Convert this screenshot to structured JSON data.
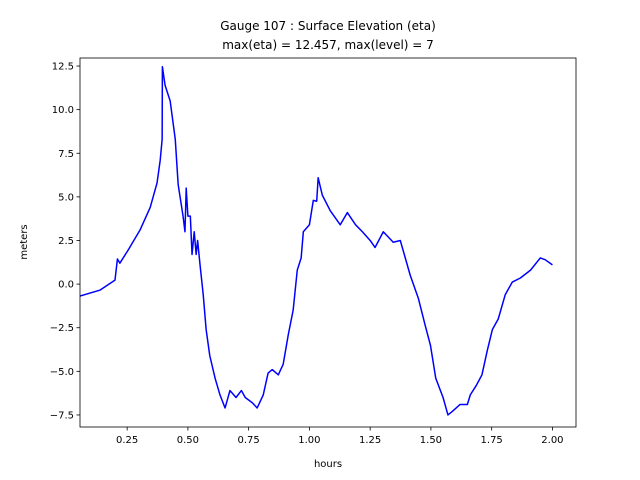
{
  "chart_data": {
    "type": "line",
    "title": "Gauge 107 : Surface Elevation (eta)",
    "subtitle": "max(eta) =  12.457,    max(level) = 7",
    "x_label": "hours",
    "y_label": "meters",
    "xlim": [
      0.056,
      2.097
    ],
    "ylim": [
      -8.19,
      12.96
    ],
    "xticks": [
      0.25,
      {
        "value": 0.5,
        "label": "0.50"
      },
      0.75,
      {
        "value": 1.0,
        "label": "1.00"
      },
      1.25,
      {
        "value": 1.5,
        "label": "1.50"
      },
      1.75,
      {
        "value": 2.0,
        "label": "2.00"
      }
    ],
    "yticks": [
      {
        "value": -7.5,
        "label": "−7.5"
      },
      {
        "value": -5.0,
        "label": "−5.0"
      },
      {
        "value": -2.5,
        "label": "−2.5"
      },
      {
        "value": 0.0,
        "label": "0.0"
      },
      2.5,
      {
        "value": 5.0,
        "label": "5.0"
      },
      7.5,
      {
        "value": 10.0,
        "label": "10.0"
      },
      12.5
    ],
    "series": [
      {
        "name": "eta",
        "color": "#0000ff",
        "x": [
          0.056,
          0.139,
          0.2,
          0.21,
          0.22,
          0.254,
          0.303,
          0.345,
          0.373,
          0.386,
          0.394,
          0.395,
          0.406,
          0.427,
          0.448,
          0.46,
          0.48,
          0.488,
          0.493,
          0.5,
          0.51,
          0.517,
          0.526,
          0.534,
          0.54,
          0.55,
          0.563,
          0.575,
          0.59,
          0.612,
          0.632,
          0.653,
          0.673,
          0.698,
          0.72,
          0.736,
          0.765,
          0.785,
          0.81,
          0.83,
          0.847,
          0.872,
          0.892,
          0.913,
          0.933,
          0.95,
          0.966,
          0.975,
          1.0,
          1.016,
          1.03,
          1.036,
          1.053,
          1.086,
          1.127,
          1.156,
          1.19,
          1.218,
          1.25,
          1.27,
          1.304,
          1.345,
          1.374,
          1.415,
          1.448,
          1.477,
          1.498,
          1.52,
          1.55,
          1.57,
          1.588,
          1.62,
          1.65,
          1.662,
          1.687,
          1.71,
          1.732,
          1.753,
          1.777,
          1.806,
          1.835,
          1.868,
          1.91,
          1.95,
          1.97,
          2.0
        ],
        "values": [
          -0.68,
          -0.34,
          0.23,
          1.44,
          1.2,
          1.95,
          3.1,
          4.4,
          5.8,
          7.1,
          8.3,
          12.457,
          11.4,
          10.5,
          8.3,
          5.7,
          3.9,
          3.0,
          5.5,
          3.9,
          3.9,
          1.7,
          3.0,
          1.7,
          2.5,
          1.1,
          -0.6,
          -2.6,
          -4.1,
          -5.4,
          -6.35,
          -7.1,
          -6.1,
          -6.5,
          -6.1,
          -6.5,
          -6.8,
          -7.1,
          -6.35,
          -5.1,
          -4.9,
          -5.2,
          -4.6,
          -2.9,
          -1.5,
          0.8,
          1.5,
          3.0,
          3.4,
          4.8,
          4.75,
          6.1,
          5.1,
          4.2,
          3.4,
          4.1,
          3.4,
          3.0,
          2.5,
          2.1,
          3.0,
          2.4,
          2.5,
          0.5,
          -0.8,
          -2.4,
          -3.5,
          -5.4,
          -6.5,
          -7.5,
          -7.3,
          -6.9,
          -6.9,
          -6.35,
          -5.8,
          -5.2,
          -3.8,
          -2.6,
          -2.0,
          -0.6,
          0.12,
          0.35,
          0.8,
          1.5,
          1.4,
          1.1
        ]
      }
    ]
  }
}
